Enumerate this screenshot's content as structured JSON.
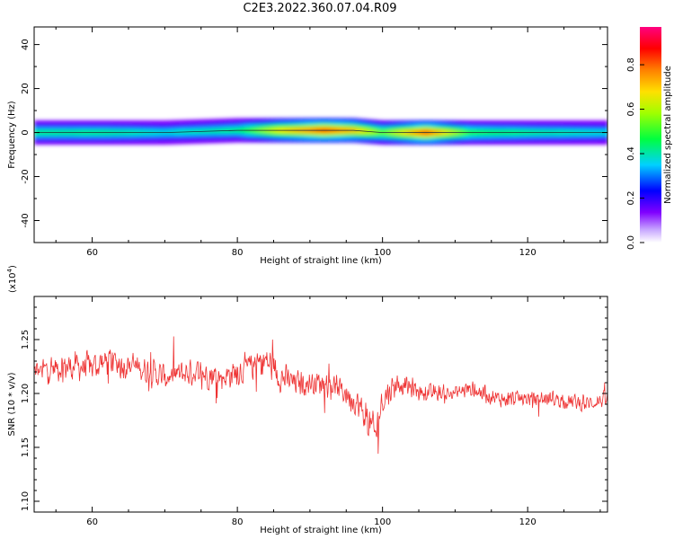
{
  "title": "C2E3.2022.360.07.04.R09",
  "chart_data": [
    {
      "type": "heatmap",
      "xlabel": "Height of straight line (km)",
      "ylabel": "Frequency (Hz)",
      "xlim": [
        52,
        131
      ],
      "ylim": [
        -50,
        48
      ],
      "xticks": [
        60,
        80,
        100,
        120
      ],
      "yticks": [
        40,
        20,
        0,
        -20,
        -40
      ],
      "colorbar": {
        "label": "Normalized spectral amplitude",
        "range": [
          0,
          0.97
        ],
        "ticks": [
          "0.0",
          "0.2",
          "0.4",
          "0.6",
          "0.8"
        ],
        "colormap": "rainbow (white-purple-blue-cyan-green-yellow-orange-red-magenta)"
      },
      "ridge": [
        {
          "x": 52,
          "freq": 0,
          "amp": 0.45
        },
        {
          "x": 62,
          "freq": 0,
          "amp": 0.45
        },
        {
          "x": 70,
          "freq": 0,
          "amp": 0.4
        },
        {
          "x": 80,
          "freq": 1,
          "amp": 0.45
        },
        {
          "x": 86,
          "freq": 1,
          "amp": 0.7
        },
        {
          "x": 92,
          "freq": 1,
          "amp": 0.85
        },
        {
          "x": 96,
          "freq": 1,
          "amp": 0.75
        },
        {
          "x": 100,
          "freq": 0,
          "amp": 0.55
        },
        {
          "x": 106,
          "freq": 0,
          "amp": 0.85
        },
        {
          "x": 112,
          "freq": 0,
          "amp": 0.5
        },
        {
          "x": 120,
          "freq": 0,
          "amp": 0.45
        },
        {
          "x": 131,
          "freq": 0,
          "amp": 0.4
        }
      ]
    },
    {
      "type": "line",
      "xlabel": "Height of straight line (km)",
      "ylabel": "SNR (10 * v/v)",
      "scale_label": "(x10",
      "scale_exp": "4",
      "scale_close": ")",
      "xlim": [
        52,
        131
      ],
      "ylim": [
        1.09,
        1.29
      ],
      "xticks": [
        60,
        80,
        100,
        120
      ],
      "yticks": [
        "1.10",
        "1.15",
        "1.20",
        "1.25"
      ],
      "color": "#ee3333",
      "series": [
        {
          "x": [
            52,
            56,
            60,
            62,
            66,
            70,
            74,
            78,
            82,
            84,
            86,
            88,
            92,
            94,
            96,
            98,
            99,
            100,
            102,
            106,
            110,
            112,
            116,
            120,
            124,
            128,
            131
          ],
          "y": [
            1.22,
            1.225,
            1.225,
            1.23,
            1.225,
            1.215,
            1.22,
            1.215,
            1.225,
            1.23,
            1.215,
            1.21,
            1.21,
            1.205,
            1.195,
            1.175,
            1.16,
            1.195,
            1.21,
            1.2,
            1.2,
            1.205,
            1.195,
            1.195,
            1.195,
            1.19,
            1.195
          ],
          "noise": [
            0.014,
            0.016,
            0.016,
            0.018,
            0.016,
            0.015,
            0.016,
            0.015,
            0.017,
            0.02,
            0.016,
            0.014,
            0.013,
            0.014,
            0.016,
            0.02,
            0.024,
            0.018,
            0.012,
            0.01,
            0.01,
            0.01,
            0.009,
            0.009,
            0.009,
            0.009,
            0.009
          ]
        }
      ]
    }
  ]
}
